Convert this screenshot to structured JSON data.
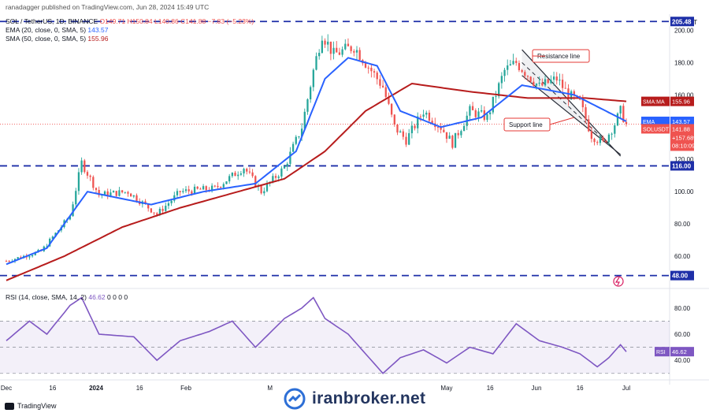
{
  "header": {
    "publisher": "ranadagger published on TradingView.com, Jun 28, 2024 15:49 UTC",
    "symbol": "SOL / TetherUS, 1D, BINANCE",
    "ohlc": "O149.71 H150.84 L140.86 C141.88 −7.83 (−5.23%)",
    "ema_label": "EMA (20, close, 0, SMA, 5)",
    "ema_value": "143.57",
    "sma_label": "SMA (50, close, 0, SMA, 5)",
    "sma_value": "155.96"
  },
  "currency": "USDT",
  "footer": {
    "tradingview": "TradingView",
    "watermark": "iranbroker.net"
  },
  "colors": {
    "up": "#26a69a",
    "down": "#ef5350",
    "ema": "#2962ff",
    "sma": "#b71c1c",
    "level": "#1e2fa8",
    "rsi": "#7e57c2",
    "annotation": "#e53935"
  },
  "chart_data": [
    {
      "type": "candlestick",
      "title": "SOL / TetherUS, 1D, BINANCE",
      "ylim": [
        40,
        210
      ],
      "y_ticks": [
        "200.00",
        "180.00",
        "160.00",
        "140.00",
        "120.00",
        "100.00",
        "80.00",
        "60.00"
      ],
      "x_ticks": [
        "Dec",
        "16",
        "2024",
        "16",
        "Feb",
        "M",
        "May",
        "16",
        "Jun",
        "16",
        "Jul"
      ],
      "horizontal_levels": [
        {
          "value": 205.48,
          "label": "205.48"
        },
        {
          "value": 116.0,
          "label": "116.00"
        },
        {
          "value": 48.0,
          "label": "48.00"
        }
      ],
      "price_tags": [
        {
          "label": "SMA:MA",
          "value": "155.96"
        },
        {
          "label": "EMA",
          "value": "143.57"
        },
        {
          "label": "SOLUSDT",
          "value": "141.88",
          "extra": [
            "+157.68%",
            "08:10:09"
          ]
        }
      ],
      "annotations": [
        {
          "text": "Resistance line",
          "line": [
            [
              188.0,
              200.0
            ],
            [
              122.0,
              200.0
            ]
          ]
        },
        {
          "text": "Support line",
          "line": [
            [
              172.0,
              200.0
            ],
            [
              123.0,
              200.0
            ]
          ]
        }
      ],
      "close_anchors": [
        {
          "x": 0,
          "close": 57
        },
        {
          "x": 12,
          "close": 63
        },
        {
          "x": 22,
          "close": 85
        },
        {
          "x": 26,
          "close": 118
        },
        {
          "x": 32,
          "close": 98
        },
        {
          "x": 42,
          "close": 100
        },
        {
          "x": 52,
          "close": 86
        },
        {
          "x": 60,
          "close": 100
        },
        {
          "x": 72,
          "close": 102
        },
        {
          "x": 82,
          "close": 115
        },
        {
          "x": 88,
          "close": 100
        },
        {
          "x": 96,
          "close": 115
        },
        {
          "x": 102,
          "close": 140
        },
        {
          "x": 106,
          "close": 175
        },
        {
          "x": 109,
          "close": 198
        },
        {
          "x": 113,
          "close": 185
        },
        {
          "x": 120,
          "close": 190
        },
        {
          "x": 126,
          "close": 175
        },
        {
          "x": 130,
          "close": 165
        },
        {
          "x": 134,
          "close": 140
        },
        {
          "x": 138,
          "close": 132
        },
        {
          "x": 144,
          "close": 150
        },
        {
          "x": 150,
          "close": 140
        },
        {
          "x": 154,
          "close": 130
        },
        {
          "x": 160,
          "close": 150
        },
        {
          "x": 166,
          "close": 146
        },
        {
          "x": 172,
          "close": 175
        },
        {
          "x": 176,
          "close": 180
        },
        {
          "x": 184,
          "close": 165
        },
        {
          "x": 190,
          "close": 170
        },
        {
          "x": 194,
          "close": 160
        },
        {
          "x": 198,
          "close": 155
        },
        {
          "x": 202,
          "close": 135
        },
        {
          "x": 206,
          "close": 130
        },
        {
          "x": 210,
          "close": 142
        },
        {
          "x": 212,
          "close": 150
        },
        {
          "x": 214,
          "close": 141.88
        }
      ],
      "ema_anchors": [
        {
          "x": 0,
          "value": 55
        },
        {
          "x": 14,
          "value": 65
        },
        {
          "x": 28,
          "value": 100
        },
        {
          "x": 50,
          "value": 92
        },
        {
          "x": 68,
          "value": 100
        },
        {
          "x": 86,
          "value": 105
        },
        {
          "x": 100,
          "value": 125
        },
        {
          "x": 110,
          "value": 170
        },
        {
          "x": 118,
          "value": 183
        },
        {
          "x": 128,
          "value": 178
        },
        {
          "x": 136,
          "value": 150
        },
        {
          "x": 150,
          "value": 140
        },
        {
          "x": 164,
          "value": 146
        },
        {
          "x": 178,
          "value": 166
        },
        {
          "x": 196,
          "value": 160
        },
        {
          "x": 214,
          "value": 143.57
        }
      ],
      "sma_anchors": [
        {
          "x": 0,
          "value": 45
        },
        {
          "x": 20,
          "value": 60
        },
        {
          "x": 40,
          "value": 78
        },
        {
          "x": 60,
          "value": 90
        },
        {
          "x": 80,
          "value": 100
        },
        {
          "x": 96,
          "value": 108
        },
        {
          "x": 110,
          "value": 125
        },
        {
          "x": 124,
          "value": 150
        },
        {
          "x": 140,
          "value": 167
        },
        {
          "x": 160,
          "value": 162
        },
        {
          "x": 180,
          "value": 158
        },
        {
          "x": 200,
          "value": 158
        },
        {
          "x": 214,
          "value": 155.96
        }
      ]
    },
    {
      "type": "line",
      "title": "RSI (14, close, SMA, 14, 2)",
      "legend_value": "46.62",
      "legend_extra": [
        "0",
        "0",
        "0",
        "0"
      ],
      "ylim": [
        25,
        95
      ],
      "y_ticks": [
        "80.00",
        "60.00",
        "40.00"
      ],
      "band": [
        30,
        70
      ],
      "mid": 50,
      "last_tag": {
        "label": "RSI",
        "value": "46.62"
      },
      "rsi_anchors": [
        {
          "x": 0,
          "value": 55
        },
        {
          "x": 8,
          "value": 70
        },
        {
          "x": 14,
          "value": 60
        },
        {
          "x": 22,
          "value": 82
        },
        {
          "x": 26,
          "value": 88
        },
        {
          "x": 32,
          "value": 60
        },
        {
          "x": 44,
          "value": 58
        },
        {
          "x": 52,
          "value": 40
        },
        {
          "x": 60,
          "value": 55
        },
        {
          "x": 70,
          "value": 62
        },
        {
          "x": 78,
          "value": 70
        },
        {
          "x": 86,
          "value": 50
        },
        {
          "x": 96,
          "value": 72
        },
        {
          "x": 102,
          "value": 80
        },
        {
          "x": 106,
          "value": 88
        },
        {
          "x": 110,
          "value": 72
        },
        {
          "x": 118,
          "value": 60
        },
        {
          "x": 124,
          "value": 45
        },
        {
          "x": 130,
          "value": 30
        },
        {
          "x": 136,
          "value": 42
        },
        {
          "x": 144,
          "value": 48
        },
        {
          "x": 152,
          "value": 38
        },
        {
          "x": 160,
          "value": 50
        },
        {
          "x": 168,
          "value": 45
        },
        {
          "x": 176,
          "value": 68
        },
        {
          "x": 184,
          "value": 55
        },
        {
          "x": 192,
          "value": 50
        },
        {
          "x": 198,
          "value": 45
        },
        {
          "x": 204,
          "value": 35
        },
        {
          "x": 208,
          "value": 42
        },
        {
          "x": 212,
          "value": 52
        },
        {
          "x": 214,
          "value": 46.62
        }
      ]
    }
  ]
}
